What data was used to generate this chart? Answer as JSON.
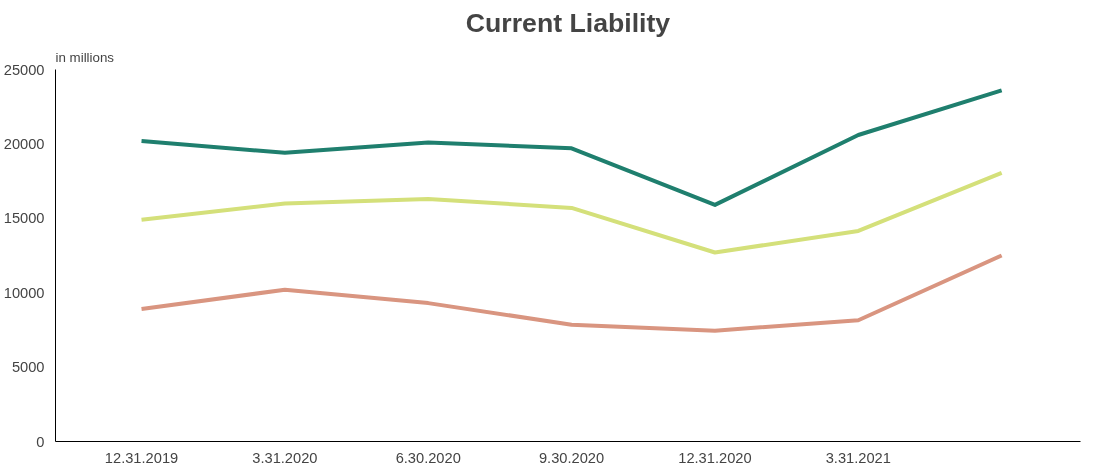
{
  "chart_data": {
    "type": "line",
    "title": "Current Liability",
    "ylabel": "in millions",
    "categories": [
      "12.31.2019",
      "3.31.2020",
      "6.30.2020",
      "9.30.2020",
      "12.31.2020",
      "3.31.2021",
      null
    ],
    "series": [
      {
        "color": "#1f7f6e",
        "values": [
          20200,
          19400,
          20100,
          19700,
          15900,
          20600,
          23600
        ]
      },
      {
        "color": "#d4e07a",
        "values": [
          14900,
          16000,
          16300,
          15700,
          12700,
          14150,
          18050
        ]
      },
      {
        "color": "#d99580",
        "values": [
          8900,
          10200,
          9300,
          7850,
          7450,
          8150,
          12500
        ]
      }
    ],
    "ylim": [
      0,
      25000
    ],
    "yticks": [
      0,
      5000,
      10000,
      15000,
      20000,
      25000
    ],
    "grid": false,
    "marker": "none",
    "line_style": "solid"
  }
}
